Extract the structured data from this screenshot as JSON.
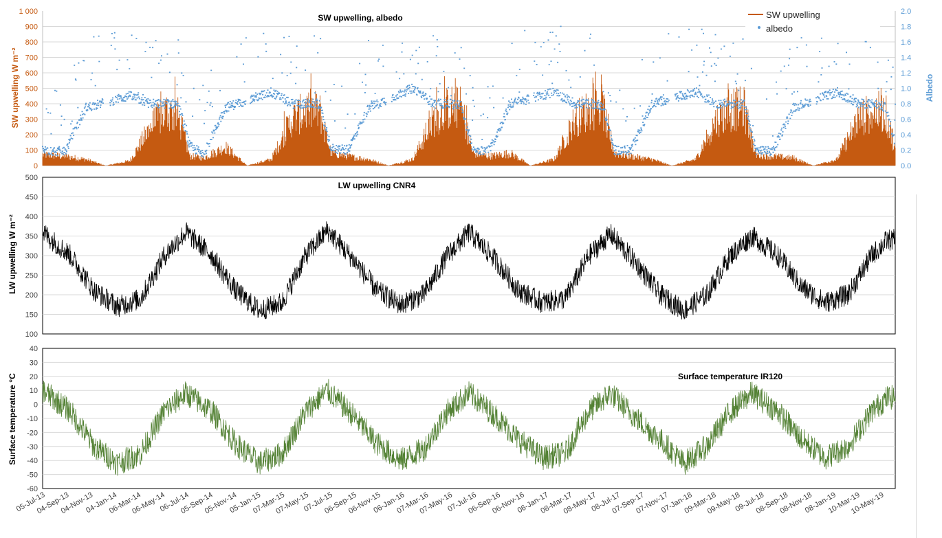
{
  "chart_data": [
    {
      "type": "area",
      "title": "SW upwelling, albedo",
      "ylabel": "SW upwelling W m⁻²",
      "y2label": "Albedo",
      "ylim": [
        0,
        1000
      ],
      "y2lim": [
        0,
        2.0
      ],
      "yticks": [
        "0",
        "100",
        "200",
        "300",
        "400",
        "500",
        "600",
        "700",
        "800",
        "900",
        "1 000"
      ],
      "y2ticks": [
        "0.0",
        "0.2",
        "0.4",
        "0.6",
        "0.8",
        "1.0",
        "1.2",
        "1.4",
        "1.6",
        "1.8",
        "2.0"
      ],
      "legend": {
        "position": "top-right",
        "entries": [
          "SW upwelling",
          "albedo"
        ]
      },
      "grid": true,
      "series": [
        {
          "name": "SW upwelling",
          "axis": "left",
          "kind": "area",
          "color": "#c55a11",
          "x": [
            "2013-07-05",
            "2013-09-01",
            "2013-10-25",
            "2013-12-15",
            "2014-02-15",
            "2014-04-10",
            "2014-05-20",
            "2014-06-20",
            "2014-07-20",
            "2014-08-25",
            "2014-10-20",
            "2014-12-15",
            "2015-02-15",
            "2015-04-10",
            "2015-05-20",
            "2015-06-20",
            "2015-07-20",
            "2015-09-01",
            "2015-10-25",
            "2015-12-15",
            "2016-02-15",
            "2016-04-10",
            "2016-05-20",
            "2016-06-20",
            "2016-07-20",
            "2016-09-01",
            "2016-10-25",
            "2016-12-15",
            "2017-02-15",
            "2017-04-10",
            "2017-05-20",
            "2017-06-20",
            "2017-07-20",
            "2017-09-01",
            "2017-10-25",
            "2017-12-15",
            "2018-02-15",
            "2018-04-10",
            "2018-05-20",
            "2018-06-20",
            "2018-07-20",
            "2018-09-01",
            "2018-10-25",
            "2018-12-15",
            "2019-02-15",
            "2019-04-10",
            "2019-05-20",
            "2019-06-20",
            "2019-07-20"
          ],
          "values": [
            70,
            60,
            40,
            0,
            30,
            250,
            350,
            320,
            60,
            50,
            120,
            0,
            40,
            300,
            360,
            350,
            80,
            60,
            40,
            0,
            40,
            300,
            380,
            370,
            80,
            60,
            80,
            0,
            40,
            300,
            370,
            380,
            80,
            60,
            40,
            0,
            40,
            300,
            360,
            370,
            70,
            60,
            50,
            0,
            40,
            300,
            350,
            340,
            60
          ]
        },
        {
          "name": "albedo",
          "axis": "right",
          "kind": "scatter",
          "color": "#5b9bd5",
          "x": [
            "2013-07-05",
            "2013-09-01",
            "2013-10-25",
            "2014-02-15",
            "2014-04-10",
            "2014-05-20",
            "2014-06-20",
            "2014-07-20",
            "2014-08-25",
            "2014-10-20",
            "2015-02-15",
            "2015-04-10",
            "2015-05-20",
            "2015-06-20",
            "2015-07-20",
            "2015-09-01",
            "2015-10-25",
            "2016-02-15",
            "2016-04-10",
            "2016-05-20",
            "2016-06-20",
            "2016-07-20",
            "2016-09-01",
            "2016-10-25",
            "2017-02-15",
            "2017-04-10",
            "2017-05-20",
            "2017-06-20",
            "2017-07-20",
            "2017-09-01",
            "2017-10-25",
            "2018-02-15",
            "2018-04-10",
            "2018-05-20",
            "2018-06-20",
            "2018-07-20",
            "2018-09-01",
            "2018-10-25",
            "2019-02-15",
            "2019-04-10",
            "2019-05-20",
            "2019-06-20",
            "2019-07-20"
          ],
          "values": [
            0.2,
            0.18,
            0.75,
            0.9,
            0.8,
            0.8,
            0.8,
            0.25,
            0.15,
            0.75,
            0.95,
            0.8,
            0.8,
            0.8,
            0.22,
            0.2,
            0.75,
            1.0,
            0.8,
            0.8,
            0.78,
            0.2,
            0.2,
            0.8,
            0.95,
            0.8,
            0.8,
            0.78,
            0.2,
            0.2,
            0.8,
            0.95,
            0.8,
            0.8,
            0.8,
            0.2,
            0.18,
            0.75,
            0.95,
            0.8,
            0.8,
            0.75,
            0.2
          ]
        }
      ]
    },
    {
      "type": "line",
      "title": "LW upwelling CNR4",
      "ylabel": "LW  upwelling     W m⁻²",
      "ylim": [
        100,
        500
      ],
      "yticks": [
        "100",
        "150",
        "200",
        "250",
        "300",
        "350",
        "400",
        "450",
        "500"
      ],
      "grid": true,
      "series": [
        {
          "color": "#000000",
          "x": [
            "2013-07-05",
            "2013-09-15",
            "2013-11-15",
            "2014-01-15",
            "2014-03-15",
            "2014-05-15",
            "2014-07-10",
            "2014-09-15",
            "2014-11-15",
            "2015-01-15",
            "2015-03-15",
            "2015-05-15",
            "2015-07-10",
            "2015-09-15",
            "2015-11-15",
            "2016-01-15",
            "2016-03-15",
            "2016-05-15",
            "2016-07-10",
            "2016-09-15",
            "2016-11-15",
            "2017-01-15",
            "2017-03-15",
            "2017-05-15",
            "2017-07-10",
            "2017-09-15",
            "2017-11-15",
            "2018-01-15",
            "2018-03-15",
            "2018-05-15",
            "2018-07-10",
            "2018-09-15",
            "2018-11-15",
            "2019-01-15",
            "2019-03-15",
            "2019-05-15",
            "2019-06-25"
          ],
          "values": [
            360,
            300,
            210,
            170,
            190,
            300,
            360,
            300,
            210,
            160,
            180,
            300,
            365,
            290,
            210,
            175,
            200,
            300,
            360,
            290,
            210,
            180,
            190,
            300,
            355,
            280,
            200,
            160,
            200,
            300,
            350,
            300,
            220,
            180,
            200,
            300,
            340
          ]
        }
      ]
    },
    {
      "type": "line",
      "title": "Surface temperature    IR120",
      "ylabel": "Surface temperature    °C",
      "ylim": [
        -60,
        40
      ],
      "yticks": [
        "-60",
        "-50",
        "-40",
        "-30",
        "-20",
        "-10",
        "0",
        "10",
        "20",
        "30",
        "40"
      ],
      "grid": true,
      "series": [
        {
          "color": "#548235",
          "x": [
            "2013-07-05",
            "2013-09-15",
            "2013-11-15",
            "2014-01-15",
            "2014-03-15",
            "2014-05-15",
            "2014-07-10",
            "2014-09-15",
            "2014-11-15",
            "2015-01-15",
            "2015-03-15",
            "2015-05-15",
            "2015-07-10",
            "2015-09-15",
            "2015-11-15",
            "2016-01-15",
            "2016-03-15",
            "2016-05-15",
            "2016-07-10",
            "2016-09-15",
            "2016-11-15",
            "2017-01-15",
            "2017-03-15",
            "2017-05-15",
            "2017-07-10",
            "2017-09-15",
            "2017-11-15",
            "2018-01-15",
            "2018-03-15",
            "2018-05-15",
            "2018-07-10",
            "2018-09-15",
            "2018-11-15",
            "2019-01-15",
            "2019-03-15",
            "2019-05-15",
            "2019-06-25"
          ],
          "values": [
            10,
            -5,
            -30,
            -42,
            -35,
            -5,
            8,
            -5,
            -28,
            -42,
            -35,
            -5,
            10,
            -8,
            -28,
            -40,
            -32,
            -5,
            8,
            -8,
            -25,
            -38,
            -35,
            -5,
            8,
            -10,
            -25,
            -42,
            -30,
            -5,
            8,
            -5,
            -25,
            -38,
            -30,
            -5,
            5
          ]
        }
      ]
    }
  ],
  "xaxis": {
    "ticks": [
      "05-Jul-13",
      "04-Sep-13",
      "04-Nov-13",
      "04-Jan-14",
      "06-Mar-14",
      "06-May-14",
      "06-Jul-14",
      "05-Sep-14",
      "05-Nov-14",
      "05-Jan-15",
      "07-Mar-15",
      "07-May-15",
      "07-Jul-15",
      "06-Sep-15",
      "06-Nov-15",
      "06-Jan-16",
      "07-Mar-16",
      "07-May-16",
      "07-Jul-16",
      "06-Sep-16",
      "06-Nov-16",
      "06-Jan-17",
      "08-Mar-17",
      "08-May-17",
      "08-Jul-17",
      "07-Sep-17",
      "07-Nov-17",
      "07-Jan-18",
      "09-Mar-18",
      "09-May-18",
      "09-Jul-18",
      "08-Sep-18",
      "08-Nov-18",
      "08-Jan-19",
      "10-Mar-19",
      "10-May-19"
    ]
  }
}
